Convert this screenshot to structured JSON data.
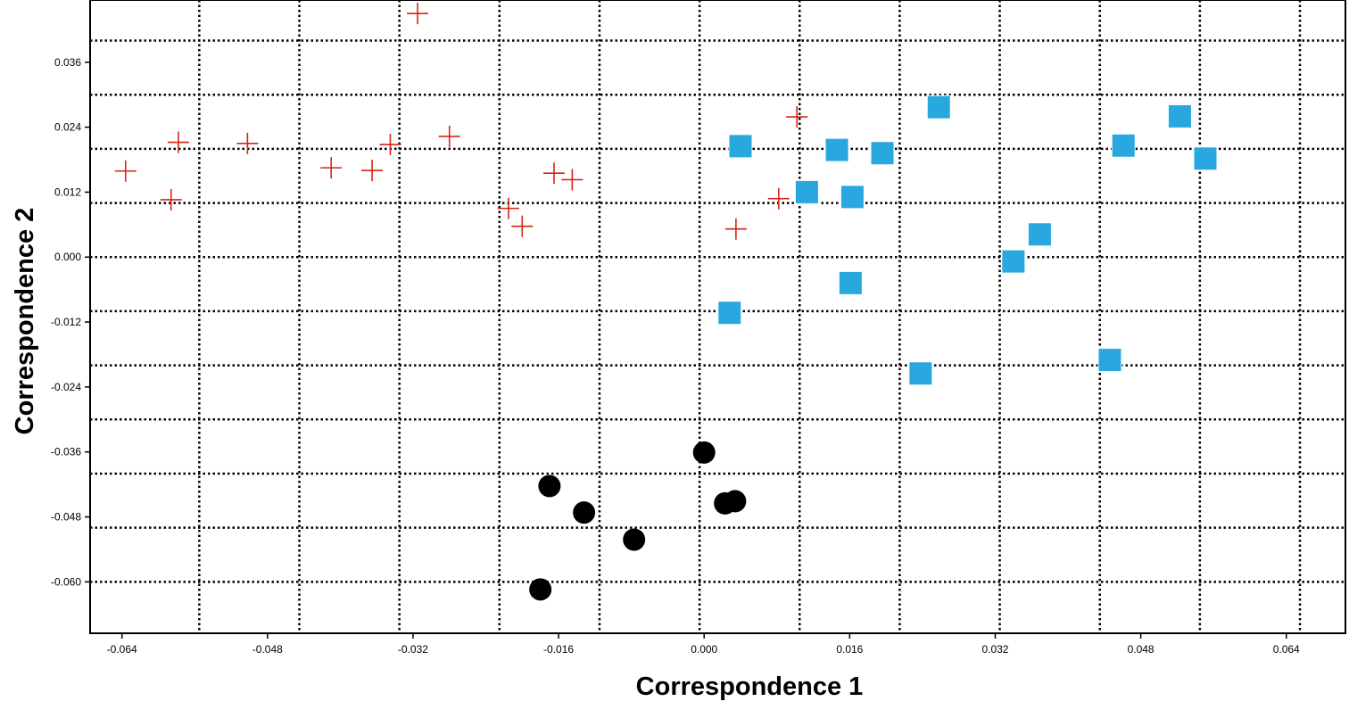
{
  "chart_data": {
    "type": "scatter",
    "title": "",
    "xlabel": "Correspondence 1",
    "ylabel": "Correspondence 2",
    "xlim": [
      -0.0675,
      0.0705
    ],
    "ylim": [
      -0.0695,
      0.0475
    ],
    "x_ticks": [
      "-0.064",
      "-0.048",
      "-0.032",
      "-0.016",
      "0.000",
      "0.016",
      "0.032",
      "0.048",
      "0.064"
    ],
    "y_ticks": [
      "0.036",
      "0.024",
      "0.012",
      "0.000",
      "-0.012",
      "-0.024",
      "-0.036",
      "-0.048",
      "-0.060"
    ],
    "x_tick_values": [
      -0.064,
      -0.048,
      -0.032,
      -0.016,
      0.0,
      0.016,
      0.032,
      0.048,
      0.064
    ],
    "y_tick_values": [
      0.036,
      0.024,
      0.012,
      0.0,
      -0.012,
      -0.024,
      -0.036,
      -0.048,
      -0.06
    ],
    "grid_x": [
      -0.0555,
      -0.0445,
      -0.0335,
      -0.0225,
      -0.0115,
      -0.0005,
      0.0105,
      0.0215,
      0.0325,
      0.0435,
      0.0545,
      0.0655
    ],
    "grid_y": [
      0.04,
      0.03,
      0.02,
      0.01,
      0.0,
      -0.01,
      -0.02,
      -0.03,
      -0.04,
      -0.05,
      -0.06
    ],
    "grid": true,
    "series": [
      {
        "marker": "plus",
        "color": "#d62418",
        "points": [
          [
            -0.0636,
            0.0159
          ],
          [
            -0.0586,
            0.0106
          ],
          [
            -0.0578,
            0.0212
          ],
          [
            -0.0502,
            0.021
          ],
          [
            -0.041,
            0.0165
          ],
          [
            -0.0365,
            0.016
          ],
          [
            -0.0345,
            0.0208
          ],
          [
            -0.0315,
            0.045
          ],
          [
            -0.028,
            0.0223
          ],
          [
            -0.0215,
            0.009
          ],
          [
            -0.02,
            0.0057
          ],
          [
            -0.0165,
            0.0155
          ],
          [
            -0.0145,
            0.0143
          ],
          [
            0.0035,
            0.0052
          ],
          [
            0.0082,
            0.0108
          ],
          [
            0.0102,
            0.0259
          ]
        ]
      },
      {
        "marker": "square",
        "color": "#29a8e0",
        "points": [
          [
            0.004,
            0.0205
          ],
          [
            0.0028,
            -0.0103
          ],
          [
            0.0113,
            0.012
          ],
          [
            0.0146,
            0.0198
          ],
          [
            0.0163,
            0.0111
          ],
          [
            0.0161,
            -0.0048
          ],
          [
            0.0196,
            0.0192
          ],
          [
            0.0238,
            -0.0215
          ],
          [
            0.0258,
            0.0277
          ],
          [
            0.034,
            -0.0008
          ],
          [
            0.0369,
            0.0042
          ],
          [
            0.0446,
            -0.019
          ],
          [
            0.0461,
            0.0206
          ],
          [
            0.0523,
            0.026
          ],
          [
            0.0551,
            0.0182
          ]
        ]
      },
      {
        "marker": "circle",
        "color": "#000000",
        "points": [
          [
            -0.017,
            -0.0423
          ],
          [
            -0.0132,
            -0.0472
          ],
          [
            -0.0077,
            -0.0522
          ],
          [
            -0.018,
            -0.0614
          ],
          [
            0.0,
            -0.0361
          ],
          [
            0.0023,
            -0.0455
          ],
          [
            0.0034,
            -0.0451
          ]
        ]
      }
    ]
  }
}
